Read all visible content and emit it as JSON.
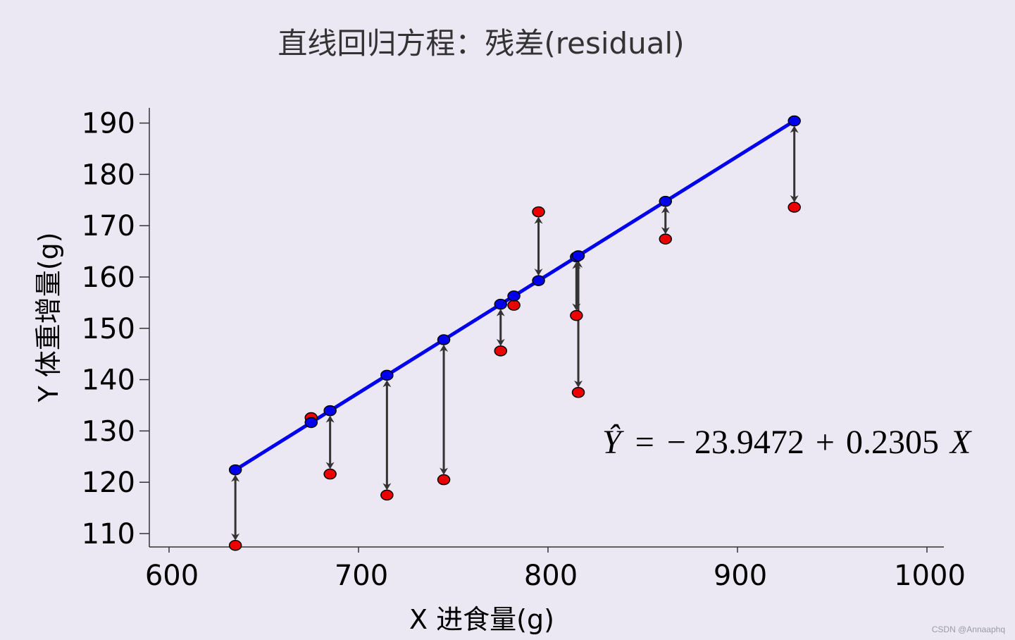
{
  "title": "直线回归方程：残差(residual)",
  "watermark": "CSDN @Annaaphq",
  "equation": {
    "yhat": "Ŷ",
    "equals": "=",
    "minus": "−",
    "intercept": "23.9472",
    "plus": "+",
    "slope": "0.2305",
    "xvar": "X"
  },
  "chart_data": {
    "type": "scatter",
    "xlabel": "X 进食量(g)",
    "ylabel": "Y 体重增量(g)",
    "xlim": [
      590,
      1010
    ],
    "ylim": [
      108,
      193
    ],
    "x_ticks": [
      600,
      700,
      800,
      900,
      1000
    ],
    "y_ticks": [
      110,
      120,
      130,
      140,
      150,
      160,
      170,
      180,
      190
    ],
    "regression": {
      "intercept": -23.9472,
      "slope": 0.2305,
      "x_range": [
        635,
        930
      ]
    },
    "fitted_color": "#0000ee",
    "observed_color": "#ee0000",
    "line_color": "#0000ee",
    "arrow_color": "#333333",
    "points": [
      {
        "x": 635,
        "y": 107.7
      },
      {
        "x": 675,
        "y": 132.6
      },
      {
        "x": 685,
        "y": 121.6
      },
      {
        "x": 715,
        "y": 117.5
      },
      {
        "x": 745,
        "y": 120.5
      },
      {
        "x": 775,
        "y": 145.6
      },
      {
        "x": 782,
        "y": 154.5
      },
      {
        "x": 795,
        "y": 172.7
      },
      {
        "x": 815,
        "y": 152.5
      },
      {
        "x": 816,
        "y": 137.5
      },
      {
        "x": 862,
        "y": 167.4
      },
      {
        "x": 930,
        "y": 173.6
      }
    ],
    "grid": false
  }
}
